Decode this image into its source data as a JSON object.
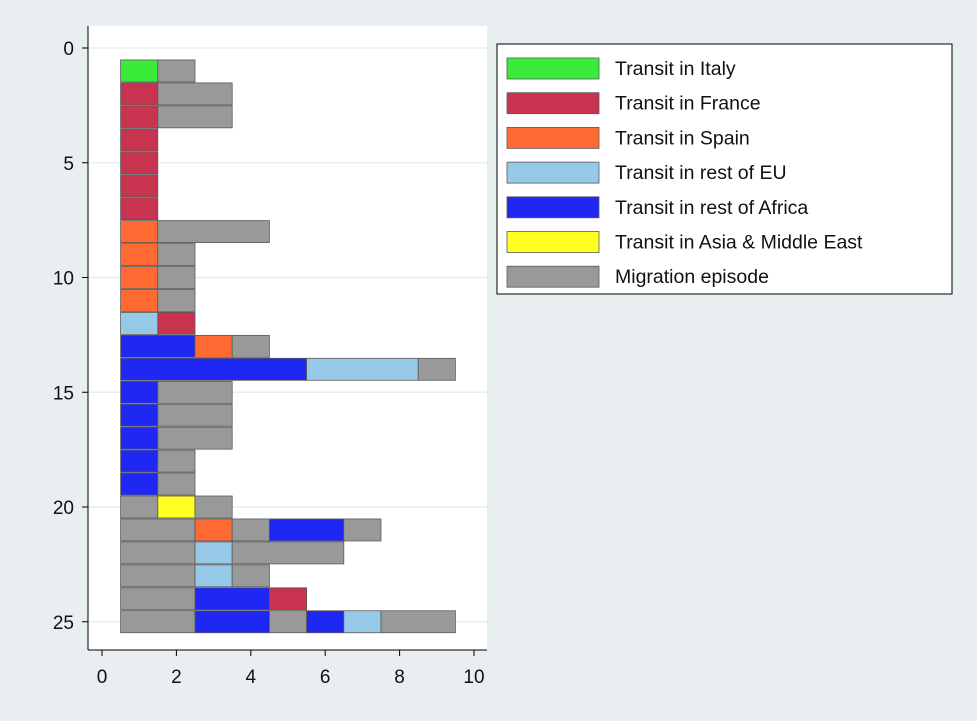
{
  "chart_data": {
    "type": "bar",
    "orientation": "horizontal",
    "stacked": true,
    "xlim": [
      0,
      10
    ],
    "ylim": [
      0,
      26
    ],
    "y_reversed": true,
    "x_ticks": [
      0,
      2,
      4,
      6,
      8,
      10
    ],
    "y_ticks": [
      0,
      5,
      10,
      15,
      20,
      25
    ],
    "grid": "horizontal",
    "legend_position": "right-top",
    "legend": [
      {
        "key": "italy",
        "label": "Transit in Italy",
        "color": "#3aeb3a"
      },
      {
        "key": "france",
        "label": "Transit in France",
        "color": "#c8344f"
      },
      {
        "key": "spain",
        "label": "Transit in Spain",
        "color": "#ff6a33"
      },
      {
        "key": "eu",
        "label": "Transit in rest of EU",
        "color": "#96c8e8"
      },
      {
        "key": "africa",
        "label": "Transit in rest of Africa",
        "color": "#1f27f2"
      },
      {
        "key": "asia",
        "label": "Transit in Asia & Middle East",
        "color": "#ffff22"
      },
      {
        "key": "migration",
        "label": "Migration episode",
        "color": "#999999"
      }
    ],
    "rows": [
      {
        "y": 1,
        "segments": [
          {
            "k": "italy",
            "start": 0.5,
            "end": 1.5
          },
          {
            "k": "migration",
            "start": 1.5,
            "end": 2.5
          }
        ]
      },
      {
        "y": 2,
        "segments": [
          {
            "k": "france",
            "start": 0.5,
            "end": 1.5
          },
          {
            "k": "migration",
            "start": 1.5,
            "end": 3.5
          }
        ]
      },
      {
        "y": 3,
        "segments": [
          {
            "k": "france",
            "start": 0.5,
            "end": 1.5
          },
          {
            "k": "migration",
            "start": 1.5,
            "end": 3.5
          }
        ]
      },
      {
        "y": 4,
        "segments": [
          {
            "k": "france",
            "start": 0.5,
            "end": 1.5
          }
        ]
      },
      {
        "y": 5,
        "segments": [
          {
            "k": "france",
            "start": 0.5,
            "end": 1.5
          }
        ]
      },
      {
        "y": 6,
        "segments": [
          {
            "k": "france",
            "start": 0.5,
            "end": 1.5
          }
        ]
      },
      {
        "y": 7,
        "segments": [
          {
            "k": "france",
            "start": 0.5,
            "end": 1.5
          }
        ]
      },
      {
        "y": 8,
        "segments": [
          {
            "k": "spain",
            "start": 0.5,
            "end": 1.5
          },
          {
            "k": "migration",
            "start": 1.5,
            "end": 4.5
          }
        ]
      },
      {
        "y": 9,
        "segments": [
          {
            "k": "spain",
            "start": 0.5,
            "end": 1.5
          },
          {
            "k": "migration",
            "start": 1.5,
            "end": 2.5
          }
        ]
      },
      {
        "y": 10,
        "segments": [
          {
            "k": "spain",
            "start": 0.5,
            "end": 1.5
          },
          {
            "k": "migration",
            "start": 1.5,
            "end": 2.5
          }
        ]
      },
      {
        "y": 11,
        "segments": [
          {
            "k": "spain",
            "start": 0.5,
            "end": 1.5
          },
          {
            "k": "migration",
            "start": 1.5,
            "end": 2.5
          }
        ]
      },
      {
        "y": 12,
        "segments": [
          {
            "k": "eu",
            "start": 0.5,
            "end": 1.5
          },
          {
            "k": "france",
            "start": 1.5,
            "end": 2.5
          }
        ]
      },
      {
        "y": 13,
        "segments": [
          {
            "k": "africa",
            "start": 0.5,
            "end": 2.5
          },
          {
            "k": "spain",
            "start": 2.5,
            "end": 3.5
          },
          {
            "k": "migration",
            "start": 3.5,
            "end": 4.5
          }
        ]
      },
      {
        "y": 14,
        "segments": [
          {
            "k": "africa",
            "start": 0.5,
            "end": 5.5
          },
          {
            "k": "eu",
            "start": 5.5,
            "end": 8.5
          },
          {
            "k": "migration",
            "start": 8.5,
            "end": 9.5
          }
        ]
      },
      {
        "y": 15,
        "segments": [
          {
            "k": "africa",
            "start": 0.5,
            "end": 1.5
          },
          {
            "k": "migration",
            "start": 1.5,
            "end": 3.5
          }
        ]
      },
      {
        "y": 16,
        "segments": [
          {
            "k": "africa",
            "start": 0.5,
            "end": 1.5
          },
          {
            "k": "migration",
            "start": 1.5,
            "end": 3.5
          }
        ]
      },
      {
        "y": 17,
        "segments": [
          {
            "k": "africa",
            "start": 0.5,
            "end": 1.5
          },
          {
            "k": "migration",
            "start": 1.5,
            "end": 3.5
          }
        ]
      },
      {
        "y": 18,
        "segments": [
          {
            "k": "africa",
            "start": 0.5,
            "end": 1.5
          },
          {
            "k": "migration",
            "start": 1.5,
            "end": 2.5
          }
        ]
      },
      {
        "y": 19,
        "segments": [
          {
            "k": "africa",
            "start": 0.5,
            "end": 1.5
          },
          {
            "k": "migration",
            "start": 1.5,
            "end": 2.5
          }
        ]
      },
      {
        "y": 20,
        "segments": [
          {
            "k": "migration",
            "start": 0.5,
            "end": 1.5
          },
          {
            "k": "asia",
            "start": 1.5,
            "end": 2.5
          },
          {
            "k": "migration",
            "start": 2.5,
            "end": 3.5
          }
        ]
      },
      {
        "y": 21,
        "segments": [
          {
            "k": "migration",
            "start": 0.5,
            "end": 2.5
          },
          {
            "k": "spain",
            "start": 2.5,
            "end": 3.5
          },
          {
            "k": "migration",
            "start": 3.5,
            "end": 4.5
          },
          {
            "k": "africa",
            "start": 4.5,
            "end": 6.5
          },
          {
            "k": "migration",
            "start": 6.5,
            "end": 7.5
          }
        ]
      },
      {
        "y": 22,
        "segments": [
          {
            "k": "migration",
            "start": 0.5,
            "end": 2.5
          },
          {
            "k": "eu",
            "start": 2.5,
            "end": 3.5
          },
          {
            "k": "migration",
            "start": 3.5,
            "end": 6.5
          }
        ]
      },
      {
        "y": 23,
        "segments": [
          {
            "k": "migration",
            "start": 0.5,
            "end": 2.5
          },
          {
            "k": "eu",
            "start": 2.5,
            "end": 3.5
          },
          {
            "k": "migration",
            "start": 3.5,
            "end": 4.5
          }
        ]
      },
      {
        "y": 24,
        "segments": [
          {
            "k": "migration",
            "start": 0.5,
            "end": 2.5
          },
          {
            "k": "africa",
            "start": 2.5,
            "end": 4.5
          },
          {
            "k": "france",
            "start": 4.5,
            "end": 5.5
          }
        ]
      },
      {
        "y": 25,
        "segments": [
          {
            "k": "migration",
            "start": 0.5,
            "end": 2.5
          },
          {
            "k": "africa",
            "start": 2.5,
            "end": 4.5
          },
          {
            "k": "migration",
            "start": 4.5,
            "end": 5.5
          },
          {
            "k": "africa",
            "start": 5.5,
            "end": 6.5
          },
          {
            "k": "eu",
            "start": 6.5,
            "end": 7.5
          },
          {
            "k": "migration",
            "start": 7.5,
            "end": 9.5
          }
        ]
      }
    ]
  }
}
